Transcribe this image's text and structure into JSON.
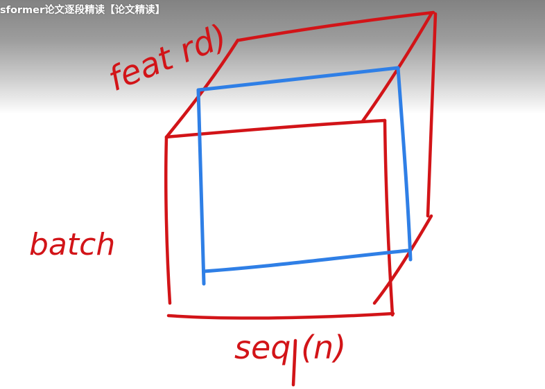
{
  "video": {
    "title": "sformer论文逐段精读【论文精读】"
  },
  "diagram": {
    "labels": {
      "feature": "feat rd)",
      "batch": "batch",
      "sequence": "seq (n)"
    },
    "colors": {
      "cube_stroke": "#d21418",
      "slice_stroke": "#2f7fe6",
      "background": "#ffffff"
    }
  }
}
